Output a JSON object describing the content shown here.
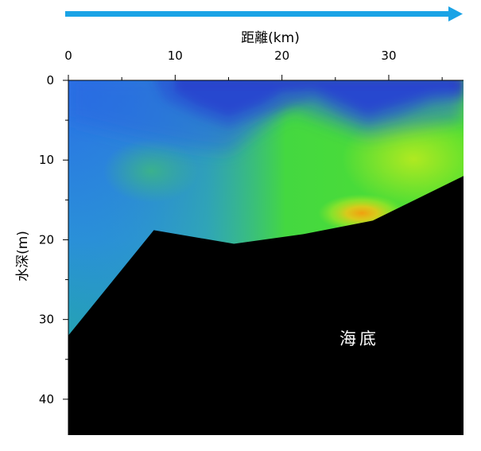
{
  "chart_data": {
    "type": "heatmap",
    "xlabel": "距離(km)",
    "ylabel": "水深(m)",
    "x_axis_position": "top",
    "y_axis_inverted": true,
    "xlim": [
      0,
      37
    ],
    "ylim": [
      0,
      44.5
    ],
    "x_ticks": [
      0,
      10,
      20,
      30
    ],
    "y_ticks": [
      0,
      10,
      20,
      30,
      40
    ],
    "x_tick_labels": [
      "0",
      "10",
      "20",
      "30"
    ],
    "y_tick_labels": [
      "0",
      "10",
      "20",
      "30",
      "40"
    ],
    "direction_arrow": {
      "color": "#1aa3e6",
      "orientation": "left-to-right"
    },
    "seabed_label": "海底",
    "seabed_color": "#000000",
    "seabed_profile": {
      "x": [
        0,
        8,
        15.5,
        22,
        28.5,
        37
      ],
      "depth": [
        32,
        18.8,
        20.5,
        19.3,
        17.6,
        12
      ]
    },
    "colormap_colors": [
      "#1e10a8",
      "#2a78e8",
      "#22a0b0",
      "#48c080",
      "#3ee030",
      "#a8e81c",
      "#f0a010"
    ],
    "field_description_values": {
      "surface_low_zone_x_km": [
        10,
        37
      ],
      "warm_patch": {
        "x_km": 26,
        "depth_m": 17
      }
    }
  }
}
